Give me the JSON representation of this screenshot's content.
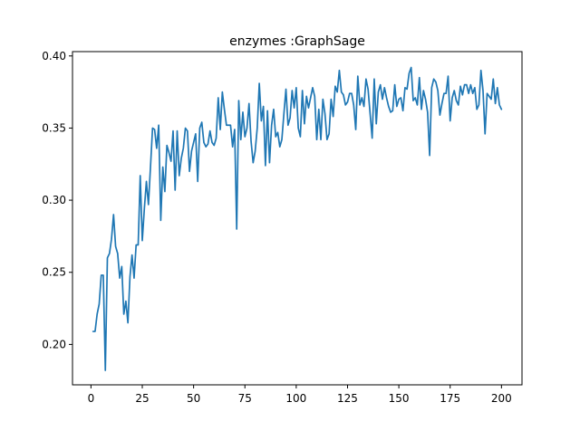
{
  "chart_data": {
    "type": "line",
    "title": "enzymes :GraphSage",
    "xlabel": "",
    "ylabel": "",
    "xlim": [
      -9,
      210
    ],
    "ylim": [
      0.172,
      0.403
    ],
    "xticks": [
      0,
      25,
      50,
      75,
      100,
      125,
      150,
      175,
      200
    ],
    "yticks": [
      0.2,
      0.25,
      0.3,
      0.35,
      0.4
    ],
    "ytick_labels": [
      "0.20",
      "0.25",
      "0.30",
      "0.35",
      "0.40"
    ],
    "grid": false,
    "series": [
      {
        "color": "#1f77b4",
        "x_start": 1,
        "x_step": 1,
        "values": [
          0.209,
          0.209,
          0.221,
          0.228,
          0.248,
          0.248,
          0.182,
          0.26,
          0.263,
          0.273,
          0.29,
          0.268,
          0.263,
          0.246,
          0.254,
          0.221,
          0.23,
          0.215,
          0.247,
          0.262,
          0.246,
          0.269,
          0.269,
          0.317,
          0.272,
          0.294,
          0.313,
          0.297,
          0.323,
          0.35,
          0.349,
          0.336,
          0.352,
          0.286,
          0.323,
          0.306,
          0.338,
          0.333,
          0.327,
          0.348,
          0.307,
          0.348,
          0.317,
          0.329,
          0.336,
          0.35,
          0.348,
          0.32,
          0.334,
          0.34,
          0.346,
          0.313,
          0.35,
          0.354,
          0.34,
          0.337,
          0.339,
          0.348,
          0.34,
          0.338,
          0.343,
          0.371,
          0.349,
          0.375,
          0.363,
          0.352,
          0.352,
          0.352,
          0.337,
          0.349,
          0.28,
          0.369,
          0.342,
          0.361,
          0.344,
          0.35,
          0.367,
          0.341,
          0.326,
          0.334,
          0.35,
          0.381,
          0.355,
          0.365,
          0.324,
          0.362,
          0.326,
          0.352,
          0.363,
          0.344,
          0.347,
          0.337,
          0.342,
          0.36,
          0.377,
          0.352,
          0.357,
          0.376,
          0.364,
          0.378,
          0.35,
          0.344,
          0.376,
          0.353,
          0.372,
          0.364,
          0.371,
          0.378,
          0.372,
          0.342,
          0.363,
          0.342,
          0.37,
          0.36,
          0.342,
          0.346,
          0.37,
          0.358,
          0.379,
          0.375,
          0.39,
          0.375,
          0.373,
          0.366,
          0.368,
          0.374,
          0.374,
          0.366,
          0.349,
          0.386,
          0.366,
          0.371,
          0.365,
          0.384,
          0.377,
          0.36,
          0.343,
          0.384,
          0.353,
          0.375,
          0.38,
          0.37,
          0.378,
          0.371,
          0.365,
          0.361,
          0.362,
          0.38,
          0.365,
          0.37,
          0.371,
          0.362,
          0.378,
          0.377,
          0.388,
          0.392,
          0.369,
          0.371,
          0.366,
          0.385,
          0.363,
          0.376,
          0.37,
          0.361,
          0.331,
          0.378,
          0.384,
          0.382,
          0.376,
          0.359,
          0.367,
          0.374,
          0.374,
          0.386,
          0.355,
          0.371,
          0.376,
          0.369,
          0.366,
          0.379,
          0.373,
          0.38,
          0.38,
          0.374,
          0.38,
          0.374,
          0.378,
          0.363,
          0.366,
          0.39,
          0.376,
          0.346,
          0.374,
          0.372,
          0.37,
          0.384,
          0.367,
          0.378,
          0.366,
          0.363
        ]
      }
    ]
  }
}
